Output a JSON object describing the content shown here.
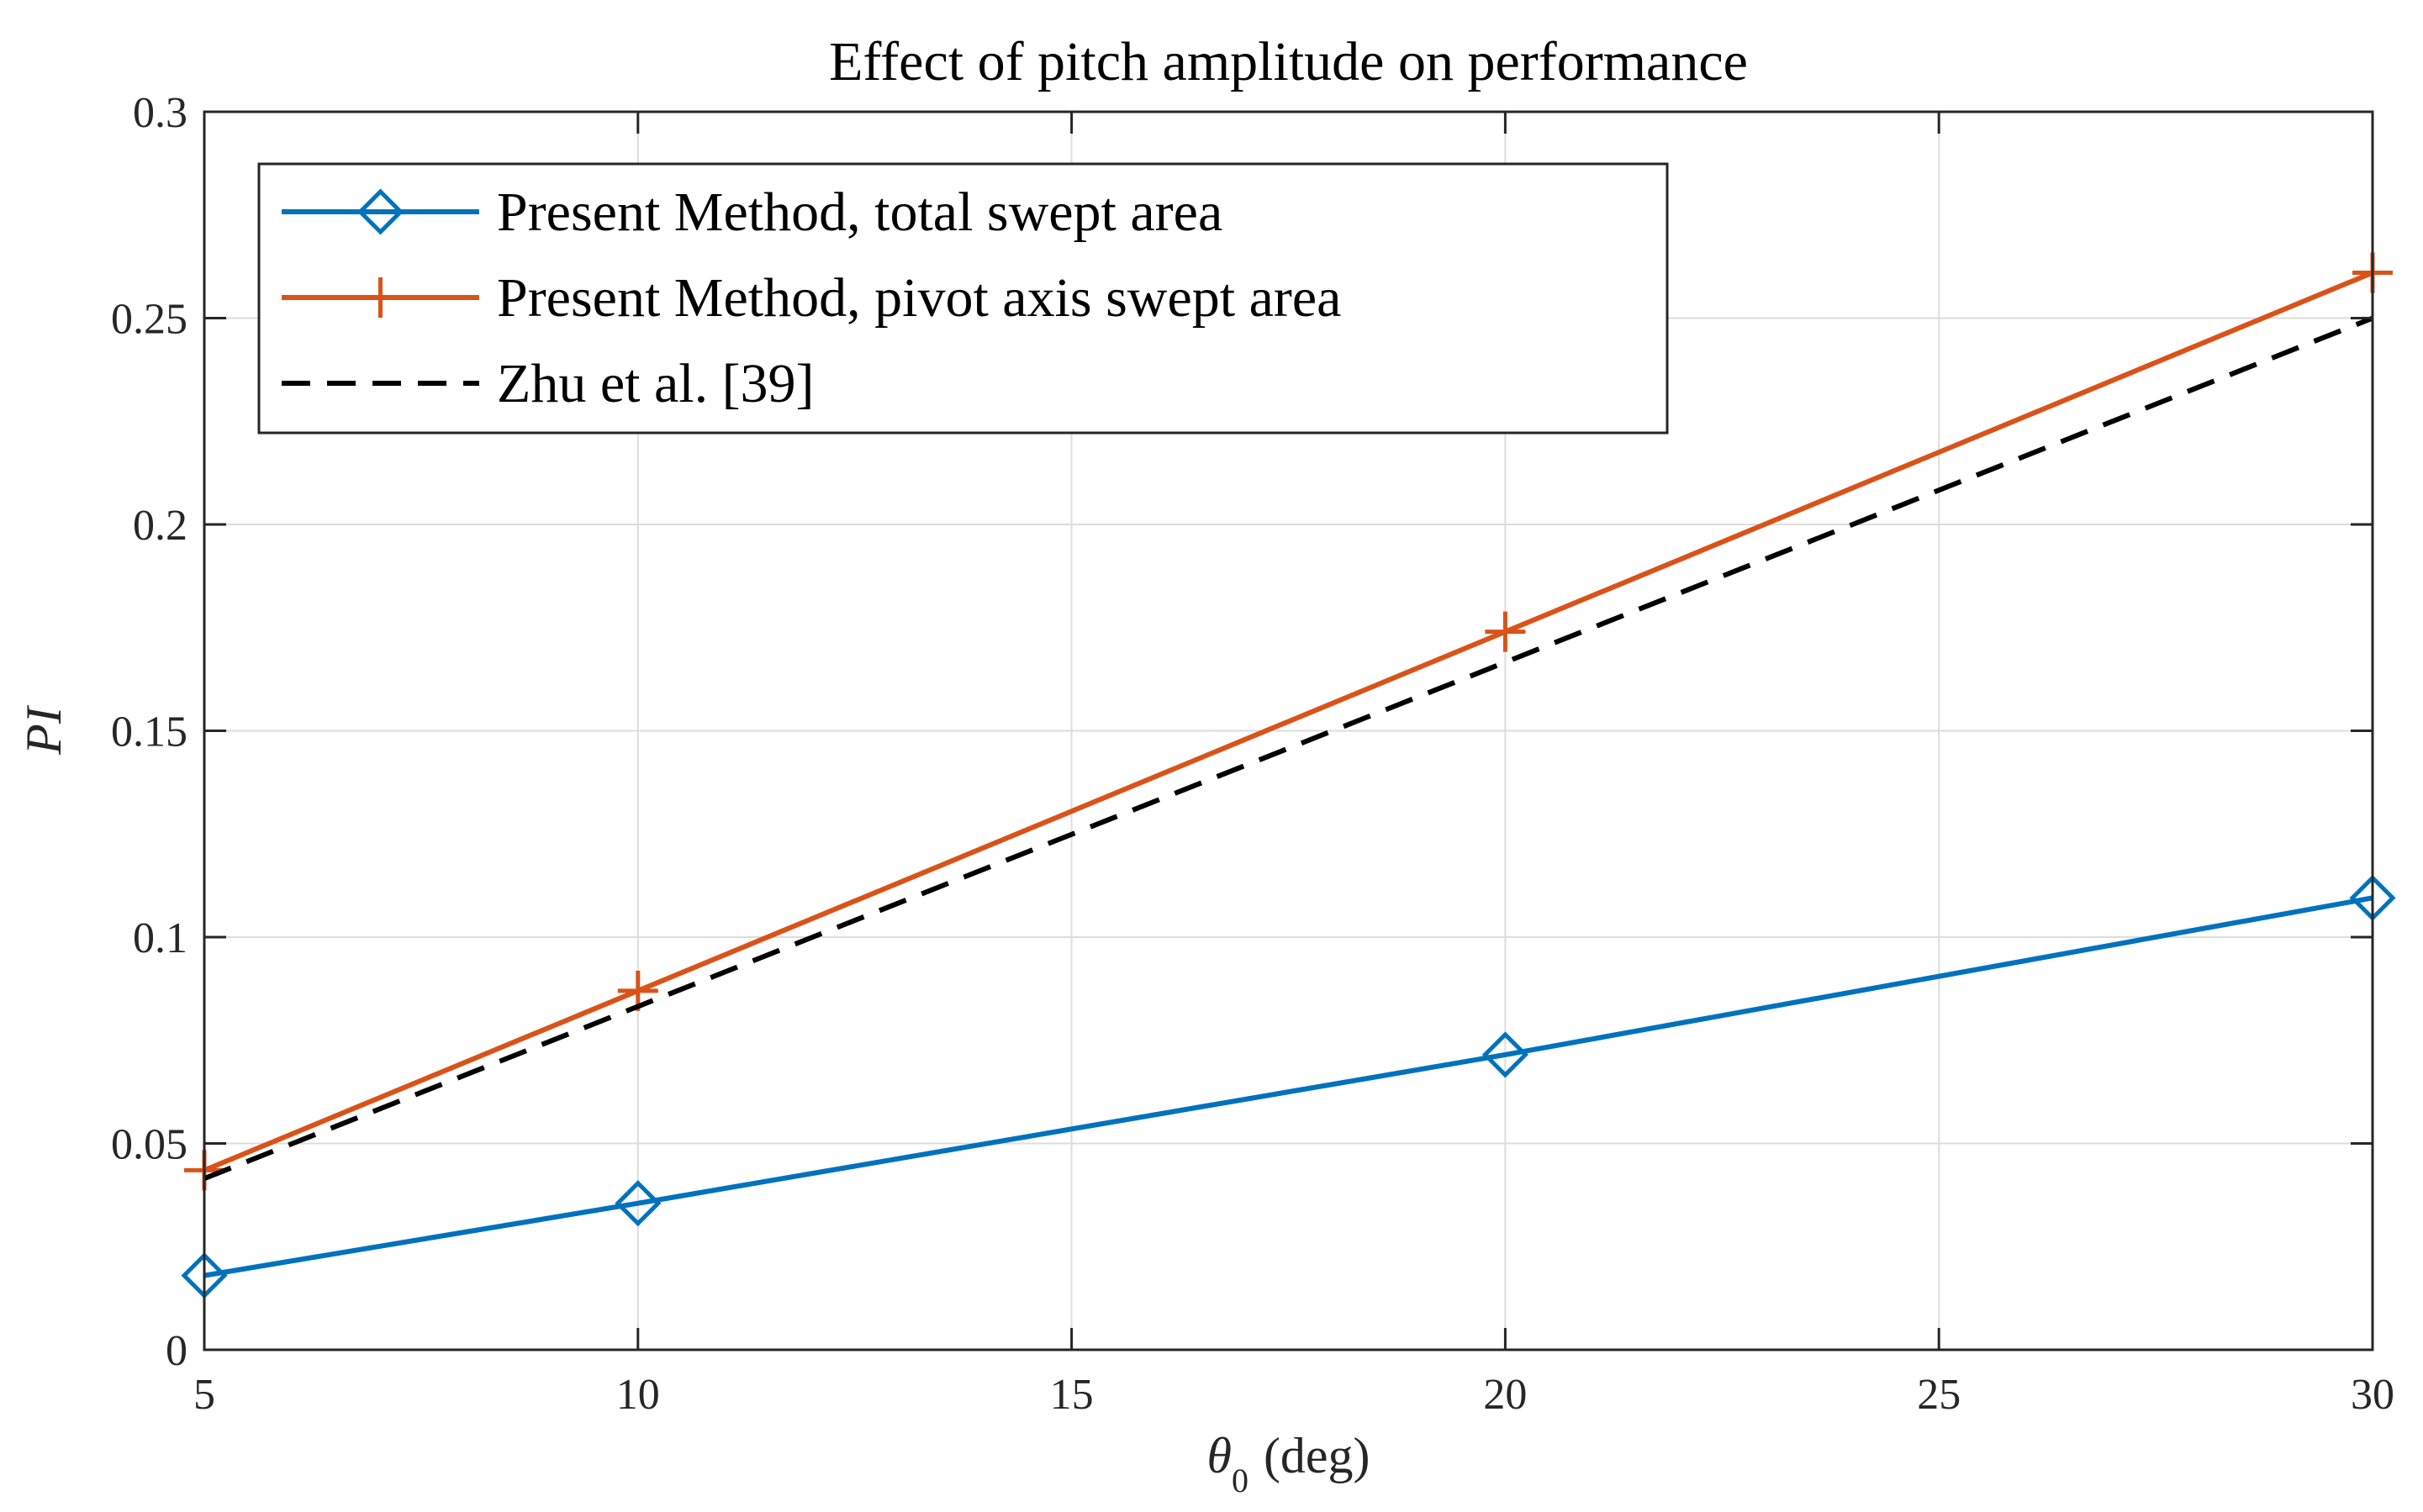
{
  "chart_data": {
    "type": "line",
    "title": "Effect of pitch amplitude on performance",
    "xlabel": "θ",
    "xlabel_subscript": "0",
    "xlabel_unit": "(deg)",
    "ylabel": "PI",
    "xlim": [
      5,
      30
    ],
    "ylim": [
      0,
      0.3
    ],
    "xticks": [
      5,
      10,
      15,
      20,
      25,
      30
    ],
    "xtick_labels": [
      "5",
      "10",
      "15",
      "20",
      "25",
      "30"
    ],
    "yticks": [
      0,
      0.05,
      0.1,
      0.15,
      0.2,
      0.25,
      0.3
    ],
    "ytick_labels": [
      "0",
      "0.05",
      "0.1",
      "0.15",
      "0.2",
      "0.25",
      "0.3"
    ],
    "grid": true,
    "legend_position": "top-left",
    "series": [
      {
        "name": "Present Method, total swept area",
        "color": "#0072BD",
        "marker": "diamond",
        "dash": "solid",
        "x": [
          5,
          10,
          20,
          30
        ],
        "y": [
          0.018,
          0.0355,
          0.0715,
          0.1095
        ]
      },
      {
        "name": "Present Method, pivot axis swept area",
        "color": "#D95319",
        "marker": "plus",
        "dash": "solid",
        "x": [
          5,
          10,
          20,
          30
        ],
        "y": [
          0.0435,
          0.087,
          0.174,
          0.261
        ]
      },
      {
        "name": "Zhu et al. [39]",
        "color": "#000000",
        "marker": "none",
        "dash": "dashed",
        "x": [
          5,
          30
        ],
        "y": [
          0.0415,
          0.25
        ]
      }
    ]
  }
}
